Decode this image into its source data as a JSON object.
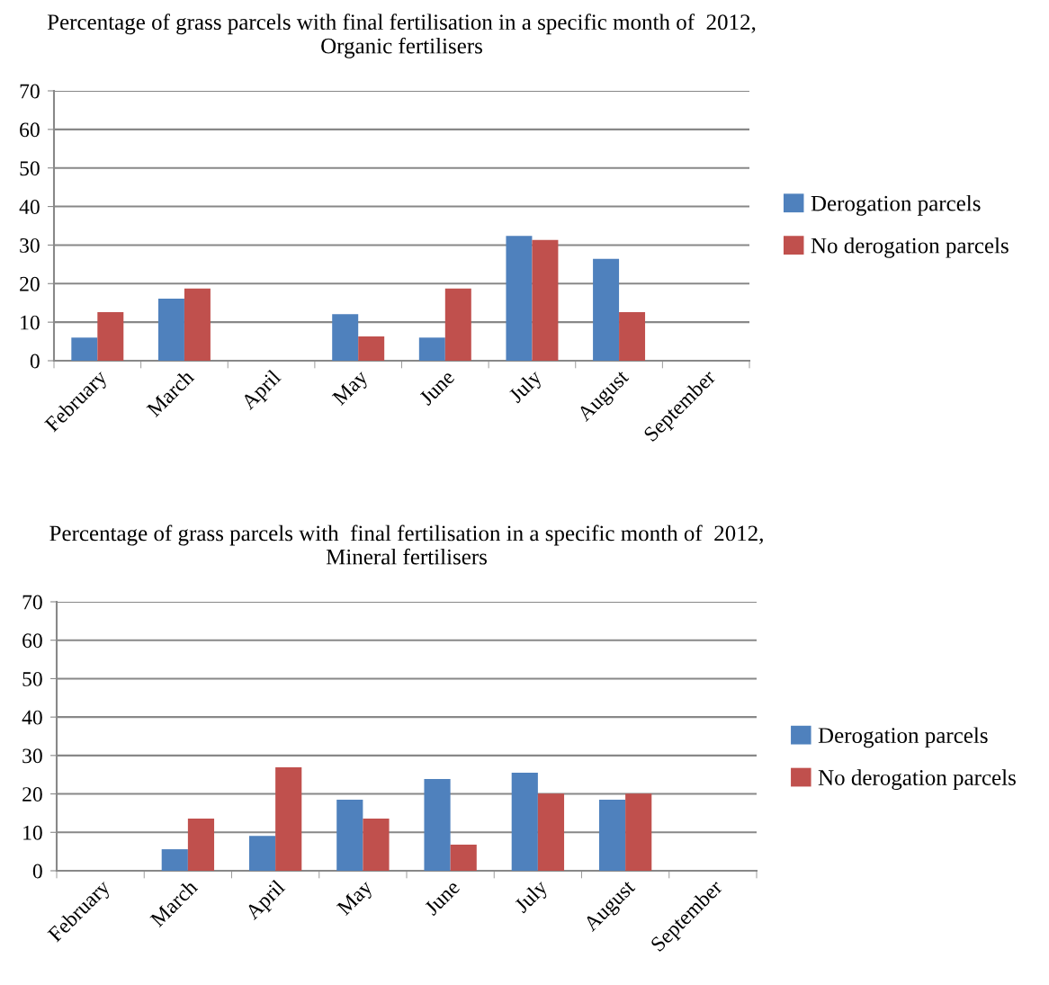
{
  "chart_data": [
    {
      "type": "bar",
      "title": "Percentage of grass parcels with final fertilisation in a specific month of  2012,\nOrganic fertilisers",
      "categories": [
        "February",
        "March",
        "April",
        "May",
        "June",
        "July",
        "August",
        "September"
      ],
      "series": [
        {
          "name": "Derogation parcels",
          "color": "#4f81bd",
          "values": [
            6,
            16.1,
            0,
            12.1,
            6,
            32.4,
            26.4,
            0
          ]
        },
        {
          "name": "No derogation parcels",
          "color": "#c0504d",
          "values": [
            12.6,
            18.7,
            0,
            6.3,
            18.7,
            31.3,
            12.6,
            0
          ]
        }
      ],
      "ylim": [
        0,
        70
      ],
      "yticks": [
        0,
        10,
        20,
        30,
        40,
        50,
        60,
        70
      ],
      "grid": "y",
      "legend": "right"
    },
    {
      "type": "bar",
      "title": "Percentage of grass parcels with  final fertilisation in a specific month of  2012,\nMineral fertilisers",
      "categories": [
        "February",
        "March",
        "April",
        "May",
        "June",
        "July",
        "August",
        "September"
      ],
      "series": [
        {
          "name": "Derogation parcels",
          "color": "#4f81bd",
          "values": [
            0,
            5.6,
            9.1,
            18.5,
            23.9,
            25.5,
            18.5,
            0
          ]
        },
        {
          "name": "No derogation parcels",
          "color": "#c0504d",
          "values": [
            0,
            13.6,
            26.9,
            13.6,
            6.8,
            20.1,
            20.1,
            0
          ]
        }
      ],
      "ylim": [
        0,
        70
      ],
      "yticks": [
        0,
        10,
        20,
        30,
        40,
        50,
        60,
        70
      ],
      "grid": "y",
      "legend": "right"
    }
  ]
}
